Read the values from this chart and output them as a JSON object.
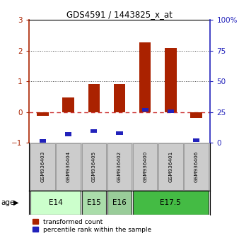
{
  "title": "GDS4591 / 1443825_x_at",
  "samples": [
    "GSM936403",
    "GSM936404",
    "GSM936405",
    "GSM936402",
    "GSM936400",
    "GSM936401",
    "GSM936406"
  ],
  "transformed_count": [
    -0.13,
    0.47,
    0.92,
    0.92,
    2.27,
    2.08,
    -0.2
  ],
  "percentile_rank_left": [
    -0.95,
    -0.72,
    -0.62,
    -0.68,
    0.08,
    0.02,
    -0.92
  ],
  "age_groups": [
    {
      "label": "E14",
      "samples": [
        0,
        1
      ],
      "color": "#ccffcc"
    },
    {
      "label": "E15",
      "samples": [
        2
      ],
      "color": "#aaddaa"
    },
    {
      "label": "E16",
      "samples": [
        3
      ],
      "color": "#99cc99"
    },
    {
      "label": "E17.5",
      "samples": [
        4,
        5,
        6
      ],
      "color": "#44bb44"
    }
  ],
  "bar_color_red": "#aa2200",
  "bar_color_blue": "#2222bb",
  "ylim_left": [
    -1.0,
    3.0
  ],
  "ylim_right": [
    0,
    100
  ],
  "yticks_left": [
    -1,
    0,
    1,
    2,
    3
  ],
  "yticks_right": [
    0,
    25,
    50,
    75,
    100
  ],
  "yticklabels_right": [
    "0",
    "25",
    "50",
    "75",
    "100%"
  ],
  "zero_line_color": "#cc3333",
  "dotted_line_color": "#444444",
  "bg_color": "#ffffff",
  "sample_box_color": "#cccccc",
  "legend_red_label": "transformed count",
  "legend_blue_label": "percentile rank within the sample",
  "age_label": "age",
  "red_bar_width": 0.45,
  "blue_bar_width": 0.25
}
